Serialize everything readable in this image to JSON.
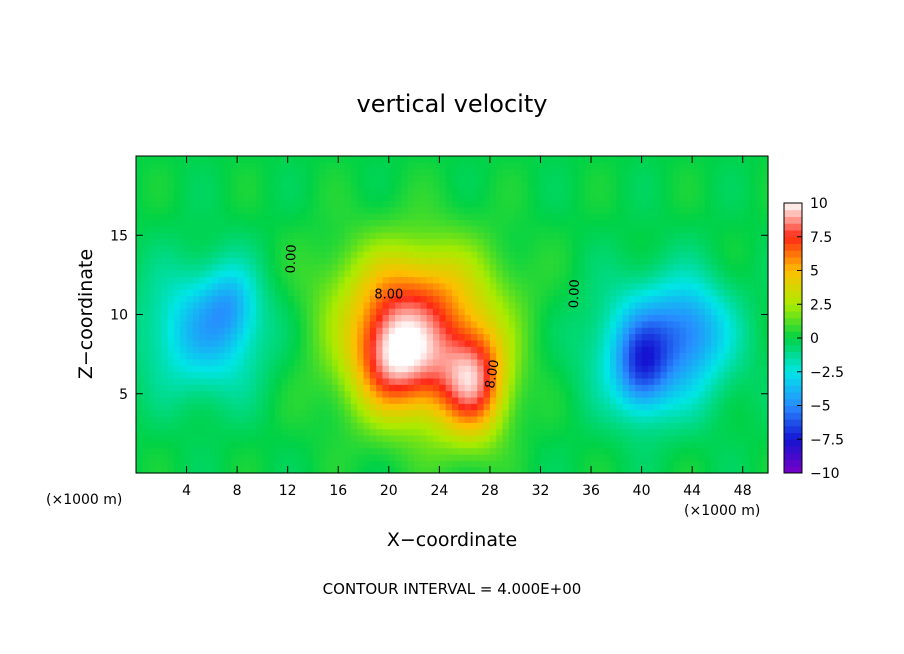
{
  "chart_data": {
    "type": "heatmap",
    "title": "vertical velocity",
    "xlabel": "X−coordinate",
    "ylabel": "Z−coordinate",
    "x_unit_left": "(×1000 m)",
    "x_unit_right": "(×1000 m)",
    "footer": "CONTOUR INTERVAL = 4.000E+00",
    "xlim": [
      0,
      50
    ],
    "ylim": [
      0,
      20
    ],
    "x_ticks": [
      4,
      8,
      12,
      16,
      20,
      24,
      28,
      32,
      36,
      40,
      44,
      48
    ],
    "y_ticks": [
      5,
      10,
      15
    ],
    "colorbar": {
      "min": -10,
      "max": 10,
      "labels": [
        "10",
        "7.5",
        "5",
        "2.5",
        "0",
        "−2.5",
        "−5",
        "−7.5",
        "−10"
      ],
      "label_values": [
        10,
        7.5,
        5,
        2.5,
        0,
        -2.5,
        -5,
        -7.5,
        -10
      ]
    },
    "contour_labels": [
      {
        "text": "0.00",
        "x": 12.6,
        "y": 13.5,
        "rotate": -88
      },
      {
        "text": "8.00",
        "x": 20.0,
        "y": 11.0,
        "rotate": 0
      },
      {
        "text": "8.00",
        "x": 28.5,
        "y": 6.2,
        "rotate": -80
      },
      {
        "text": "0.00",
        "x": 35.0,
        "y": 11.3,
        "rotate": -88
      }
    ],
    "features": [
      {
        "kind": "updraft",
        "cx": 22.0,
        "cz": 9.0,
        "rx": 9.0,
        "rz": 6.8,
        "w": 3.6
      },
      {
        "kind": "updraft",
        "cx": 22.0,
        "cz": 12.0,
        "rx": 7.5,
        "rz": 3.5,
        "w": 2.0
      },
      {
        "kind": "updraft",
        "cx": 20.5,
        "cz": 7.5,
        "rx": 4.0,
        "rz": 4.5,
        "w": 7.0
      },
      {
        "kind": "updraft",
        "cx": 26.8,
        "cz": 5.8,
        "rx": 3.2,
        "rz": 4.5,
        "w": 7.0
      },
      {
        "kind": "updraft",
        "cx": 24.0,
        "cz": 7.0,
        "rx": 3.0,
        "rz": 6.0,
        "w": 2.0
      },
      {
        "kind": "downdraft",
        "cx": 5.5,
        "cz": 9.0,
        "rx": 6.0,
        "rz": 5.0,
        "w": -3.8
      },
      {
        "kind": "downdraft",
        "cx": 7.5,
        "cz": 10.8,
        "rx": 2.5,
        "rz": 3.0,
        "w": -2.0
      },
      {
        "kind": "downdraft",
        "cx": 41.5,
        "cz": 8.0,
        "rx": 6.5,
        "rz": 5.0,
        "w": -4.5
      },
      {
        "kind": "downdraft",
        "cx": 40.0,
        "cz": 6.5,
        "rx": 2.5,
        "rz": 3.5,
        "w": -3.5
      },
      {
        "kind": "downdraft",
        "cx": 44.0,
        "cz": 9.5,
        "rx": 3.5,
        "rz": 3.5,
        "w": -2.0
      }
    ]
  }
}
